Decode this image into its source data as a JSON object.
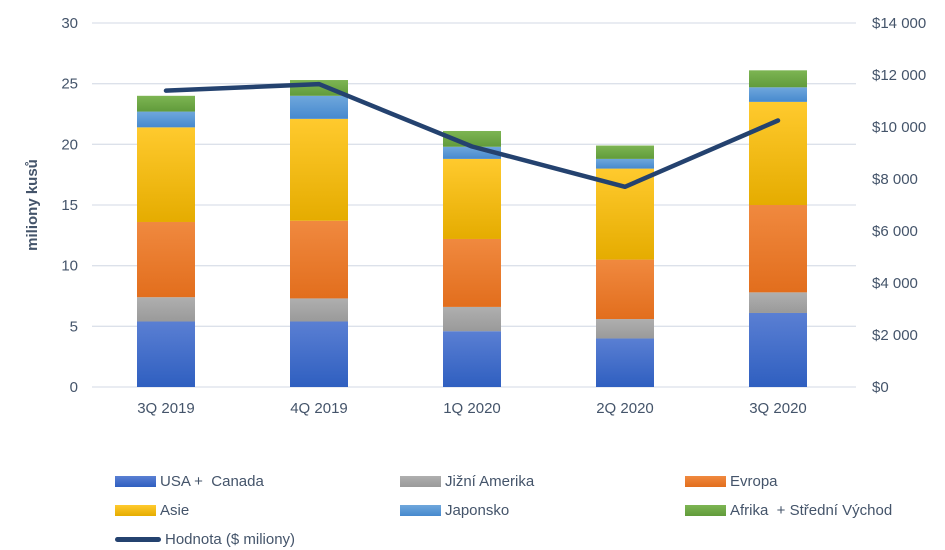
{
  "chart_data": {
    "type": "combo: stacked bar + line",
    "categories": [
      "3Q 2019",
      "4Q 2019",
      "1Q 2020",
      "2Q 2020",
      "3Q 2020"
    ],
    "bar_series": [
      {
        "name": "USA +  Canada",
        "color": "#4472C4",
        "gradient_top": "#5A7FD3",
        "gradient_bottom": "#2F5FC0",
        "values": [
          5.4,
          5.4,
          4.6,
          4.0,
          6.1
        ]
      },
      {
        "name": "Jižní Amerika",
        "color": "#A5A5A5",
        "gradient_top": "#AFAFAF",
        "gradient_bottom": "#9A9A9A",
        "values": [
          2.0,
          1.9,
          2.0,
          1.6,
          1.7
        ]
      },
      {
        "name": "Evropa",
        "color": "#ED7D31",
        "gradient_top": "#F0893F",
        "gradient_bottom": "#E26E1D",
        "values": [
          6.2,
          6.4,
          5.6,
          4.9,
          7.2
        ]
      },
      {
        "name": "Asie",
        "color": "#FFC000",
        "gradient_top": "#FFCA2E",
        "gradient_bottom": "#E5AC00",
        "values": [
          7.8,
          8.4,
          6.6,
          7.5,
          8.5
        ]
      },
      {
        "name": "Japonsko",
        "color": "#5B9BD5",
        "gradient_top": "#6FA7DC",
        "gradient_bottom": "#4689CE",
        "values": [
          1.3,
          1.9,
          1.0,
          0.8,
          1.2
        ]
      },
      {
        "name": "Afrika  + Střední Východ",
        "color": "#70AD47",
        "gradient_top": "#7DB553",
        "gradient_bottom": "#619B3B",
        "values": [
          1.3,
          1.3,
          1.3,
          1.1,
          1.4
        ]
      }
    ],
    "bar_totals": [
      24.0,
      25.3,
      21.1,
      19.9,
      26.1
    ],
    "line_series": {
      "name": "Hodnota ($ miliony)",
      "color": "#24426F",
      "values": [
        11400,
        11650,
        9250,
        7700,
        10250
      ]
    },
    "y_left": {
      "title": "miliony kusů",
      "min": 0,
      "max": 30,
      "step": 5,
      "ticks": [
        "0",
        "5",
        "10",
        "15",
        "20",
        "25",
        "30"
      ]
    },
    "y_right": {
      "min": 0,
      "max": 14000,
      "step": 2000,
      "ticks": [
        "$0",
        "$2 000",
        "$4 000",
        "$6 000",
        "$8 000",
        "$10 000",
        "$12 000",
        "$14 000"
      ]
    },
    "grid": true,
    "legend_position": "bottom"
  },
  "colors": {
    "axis_text": "#44546A",
    "gridline": "#DCE1EA"
  }
}
